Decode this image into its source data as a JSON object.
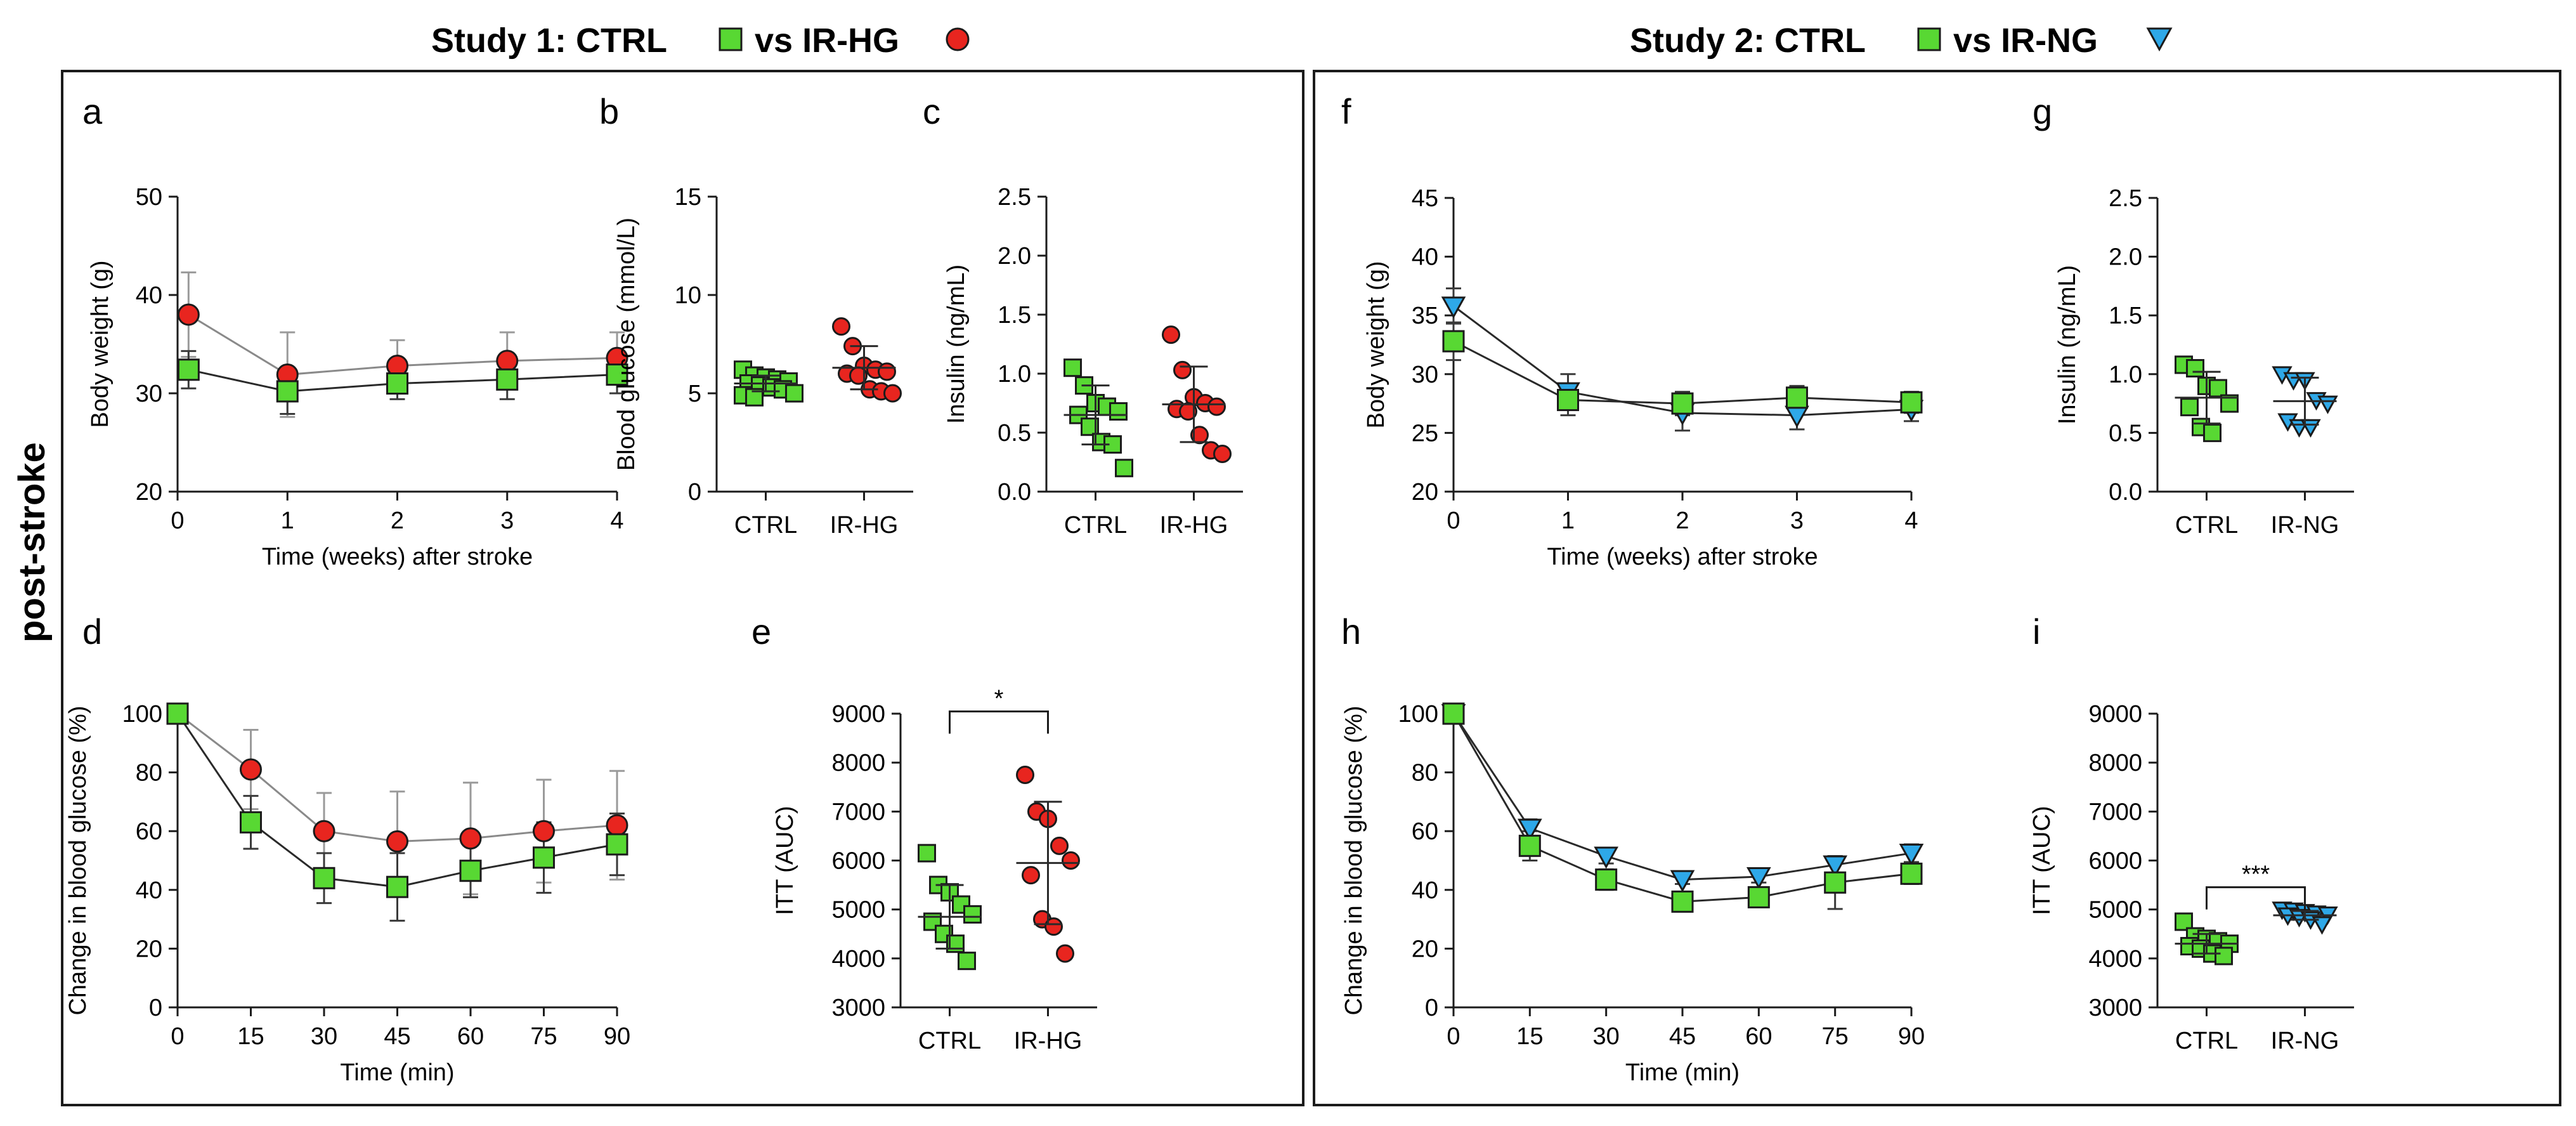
{
  "figure": {
    "study1_title": "Study 1: CTRL",
    "study1_vs": "vs IR-HG",
    "study2_title": "Study 2: CTRL",
    "study2_vs": "vs IR-NG",
    "side_label": "post-stroke"
  },
  "colors": {
    "ctrl": "#58d833",
    "irhg": "#e8251f",
    "irng": "#2ea8e8"
  },
  "chart_data": [
    {
      "id": "a",
      "letter": "a",
      "type": "line",
      "title": "",
      "xlabel": "Time (weeks) after stroke",
      "ylabel": "Body weight (g)",
      "x": [
        0,
        1,
        2,
        3,
        4
      ],
      "xticks": [
        0,
        1,
        2,
        3,
        4
      ],
      "xlim": [
        0,
        4
      ],
      "yticks": [
        20,
        30,
        40,
        50
      ],
      "ylim": [
        20,
        50
      ],
      "series": [
        {
          "name": "IR-HG",
          "marker": "circle",
          "color": "#e8251f",
          "x": [
            0.1,
            1,
            2,
            3,
            4
          ],
          "values": [
            38.0,
            31.9,
            32.8,
            33.3,
            33.6
          ],
          "err": [
            4.3,
            4.3,
            2.6,
            2.9,
            2.6
          ]
        },
        {
          "name": "CTRL",
          "marker": "square",
          "color": "#58d833",
          "x": [
            0.1,
            1,
            2,
            3,
            4
          ],
          "values": [
            32.4,
            30.2,
            31.0,
            31.4,
            31.9
          ],
          "err": [
            1.9,
            2.3,
            1.6,
            2.0,
            1.9
          ]
        }
      ]
    },
    {
      "id": "b",
      "letter": "b",
      "type": "scatter",
      "title": "",
      "xlabel": "",
      "ylabel": "Blood glucose (mmol/L)",
      "categories": [
        "CTRL",
        "IR-HG"
      ],
      "yticks": [
        0,
        5,
        10,
        15
      ],
      "ylim": [
        0,
        15
      ],
      "groups": [
        {
          "name": "CTRL",
          "marker": "square",
          "color": "#58d833",
          "values": [
            6.2,
            5.9,
            5.8,
            5.7,
            5.6,
            5.5,
            5.4,
            5.3,
            5.2,
            5.0,
            4.9,
            4.8
          ],
          "mean": 5.5,
          "sd": 0.4
        },
        {
          "name": "IR-HG",
          "marker": "circle",
          "color": "#e8251f",
          "values": [
            8.4,
            7.4,
            6.4,
            6.2,
            6.1,
            6.0,
            5.9,
            5.2,
            5.1,
            5.0
          ],
          "mean": 6.3,
          "sd": 1.1
        }
      ]
    },
    {
      "id": "c",
      "letter": "c",
      "type": "scatter",
      "title": "",
      "xlabel": "",
      "ylabel": "Insulin (ng/mL)",
      "categories": [
        "CTRL",
        "IR-HG"
      ],
      "yticks": [
        0.0,
        0.5,
        1.0,
        1.5,
        2.0,
        2.5
      ],
      "ylim": [
        0,
        2.5
      ],
      "groups": [
        {
          "name": "CTRL",
          "marker": "square",
          "color": "#58d833",
          "values": [
            1.05,
            0.9,
            0.75,
            0.72,
            0.68,
            0.65,
            0.55,
            0.42,
            0.4,
            0.2
          ],
          "mean": 0.65,
          "sd": 0.25
        },
        {
          "name": "IR-HG",
          "marker": "circle",
          "color": "#e8251f",
          "values": [
            1.33,
            1.03,
            0.8,
            0.75,
            0.72,
            0.7,
            0.68,
            0.48,
            0.35,
            0.32
          ],
          "mean": 0.74,
          "sd": 0.32
        }
      ]
    },
    {
      "id": "d",
      "letter": "d",
      "type": "line",
      "title": "",
      "xlabel": "Time (min)",
      "ylabel": "Change in blood glucose (%)",
      "x": [
        0,
        15,
        30,
        45,
        60,
        75,
        90
      ],
      "xticks": [
        0,
        15,
        30,
        45,
        60,
        75,
        90
      ],
      "xlim": [
        0,
        90
      ],
      "yticks": [
        0,
        20,
        40,
        60,
        80,
        100
      ],
      "ylim": [
        0,
        100
      ],
      "series": [
        {
          "name": "IR-HG",
          "marker": "circle",
          "color": "#e8251f",
          "x": [
            0,
            15,
            30,
            45,
            60,
            75,
            90
          ],
          "values": [
            100,
            81,
            60,
            56.5,
            57.5,
            60,
            62
          ],
          "err": [
            0,
            13.5,
            13,
            17,
            19,
            17.5,
            18.5
          ]
        },
        {
          "name": "CTRL",
          "marker": "square",
          "color": "#58d833",
          "x": [
            0,
            15,
            30,
            45,
            60,
            75,
            90
          ],
          "values": [
            100,
            63,
            44,
            41,
            46.5,
            51,
            55.5
          ],
          "err": [
            0,
            9,
            8.5,
            11.5,
            9,
            12,
            10.5
          ]
        }
      ]
    },
    {
      "id": "e",
      "letter": "e",
      "type": "scatter",
      "title": "",
      "xlabel": "",
      "ylabel": "ITT (AUC)",
      "categories": [
        "CTRL",
        "IR-HG"
      ],
      "yticks": [
        3000,
        4000,
        5000,
        6000,
        7000,
        8000,
        9000
      ],
      "ylim": [
        3000,
        9000
      ],
      "significance": "*",
      "groups": [
        {
          "name": "CTRL",
          "marker": "square",
          "color": "#58d833",
          "values": [
            6150,
            5500,
            5350,
            5100,
            4900,
            4750,
            4500,
            4300,
            3950
          ],
          "mean": 4850,
          "sd": 650
        },
        {
          "name": "IR-HG",
          "marker": "circle",
          "color": "#e8251f",
          "values": [
            7750,
            7000,
            6850,
            6300,
            6000,
            5700,
            4800,
            4650,
            4100
          ],
          "mean": 5950,
          "sd": 1250
        }
      ]
    },
    {
      "id": "f",
      "letter": "f",
      "type": "line",
      "title": "",
      "xlabel": "Time (weeks) after stroke",
      "ylabel": "Body weight (g)",
      "x": [
        0,
        1,
        2,
        3,
        4
      ],
      "xticks": [
        0,
        1,
        2,
        3,
        4
      ],
      "xlim": [
        0,
        4
      ],
      "yticks": [
        20,
        25,
        30,
        35,
        40,
        45
      ],
      "ylim": [
        20,
        45
      ],
      "series": [
        {
          "name": "IR-NG",
          "marker": "triangle",
          "color": "#2ea8e8",
          "x": [
            0,
            1,
            2,
            3,
            4
          ],
          "values": [
            35.8,
            28.5,
            26.7,
            26.5,
            27.0
          ],
          "err": [
            1.5,
            1.5,
            1.5,
            1.2,
            1.0
          ]
        },
        {
          "name": "CTRL",
          "marker": "square",
          "color": "#58d833",
          "x": [
            0,
            1,
            2,
            3,
            4
          ],
          "values": [
            32.8,
            27.8,
            27.5,
            28.0,
            27.6
          ],
          "err": [
            1.6,
            1.3,
            1.0,
            1.0,
            0.9
          ]
        }
      ]
    },
    {
      "id": "g",
      "letter": "g",
      "type": "scatter",
      "title": "",
      "xlabel": "",
      "ylabel": "Insulin (ng/mL)",
      "categories": [
        "CTRL",
        "IR-NG"
      ],
      "yticks": [
        0.0,
        0.5,
        1.0,
        1.5,
        2.0,
        2.5
      ],
      "ylim": [
        0,
        2.5
      ],
      "groups": [
        {
          "name": "CTRL",
          "marker": "square",
          "color": "#58d833",
          "values": [
            1.08,
            1.05,
            0.9,
            0.88,
            0.75,
            0.72,
            0.55,
            0.5
          ],
          "mean": 0.8,
          "sd": 0.22
        },
        {
          "name": "IR-NG",
          "marker": "triangle",
          "color": "#2ea8e8",
          "values": [
            1.0,
            0.95,
            0.95,
            0.78,
            0.75,
            0.6,
            0.55,
            0.55
          ],
          "mean": 0.77,
          "sd": 0.2
        }
      ]
    },
    {
      "id": "h",
      "letter": "h",
      "type": "line",
      "title": "",
      "xlabel": "Time (min)",
      "ylabel": "Change in blood glucose (%)",
      "x": [
        0,
        15,
        30,
        45,
        60,
        75,
        90
      ],
      "xticks": [
        0,
        15,
        30,
        45,
        60,
        75,
        90
      ],
      "xlim": [
        0,
        90
      ],
      "yticks": [
        0,
        20,
        40,
        60,
        80,
        100
      ],
      "ylim": [
        0,
        100
      ],
      "series": [
        {
          "name": "IR-NG",
          "marker": "triangle",
          "color": "#2ea8e8",
          "x": [
            0,
            15,
            30,
            45,
            60,
            75,
            90
          ],
          "values": [
            100,
            61,
            51.5,
            43.5,
            44.5,
            48.5,
            52.5
          ],
          "err": [
            0,
            3,
            2.5,
            1.5,
            2,
            3,
            3
          ]
        },
        {
          "name": "CTRL",
          "marker": "square",
          "color": "#58d833",
          "x": [
            0,
            15,
            30,
            45,
            60,
            75,
            90
          ],
          "values": [
            100,
            55,
            43.5,
            36,
            37.5,
            42.5,
            45.5
          ],
          "err": [
            0,
            5,
            3.5,
            2.5,
            2.5,
            9,
            3.5
          ]
        }
      ]
    },
    {
      "id": "i",
      "letter": "i",
      "type": "scatter",
      "title": "",
      "xlabel": "",
      "ylabel": "ITT (AUC)",
      "categories": [
        "CTRL",
        "IR-NG"
      ],
      "yticks": [
        3000,
        4000,
        5000,
        6000,
        7000,
        8000,
        9000
      ],
      "ylim": [
        3000,
        9000
      ],
      "significance": "***",
      "groups": [
        {
          "name": "CTRL",
          "marker": "square",
          "color": "#58d833",
          "values": [
            4750,
            4450,
            4400,
            4350,
            4300,
            4250,
            4200,
            4100,
            4050
          ],
          "mean": 4300,
          "sd": 200
        },
        {
          "name": "IR-NG",
          "marker": "triangle",
          "color": "#2ea8e8",
          "values": [
            5000,
            4980,
            4950,
            4920,
            4900,
            4880,
            4850,
            4800,
            4700
          ],
          "mean": 4880,
          "sd": 90
        }
      ]
    }
  ]
}
